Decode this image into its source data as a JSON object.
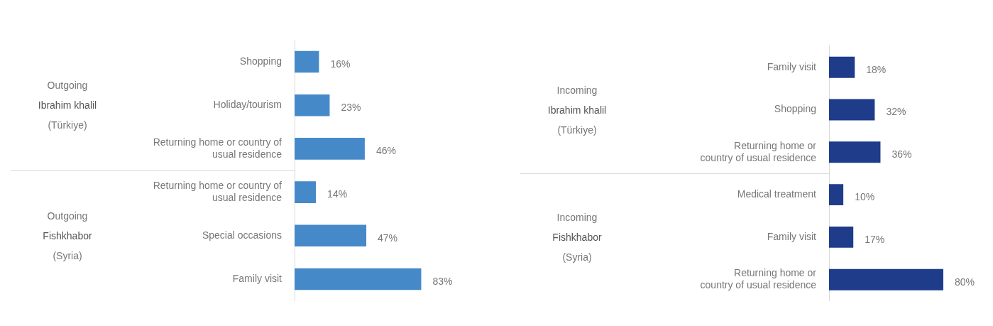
{
  "chart_data": [
    {
      "type": "bar",
      "orientation": "horizontal",
      "categories": [
        "Shopping",
        "Holiday/tourism",
        "Returning home or country of usual residence",
        "Returning home or country of usual residence",
        "Special occasions",
        "Family visit"
      ],
      "values": [
        16,
        23,
        46,
        14,
        47,
        83
      ],
      "value_labels": [
        "16%",
        "23%",
        "46%",
        "14%",
        "47%",
        "83%"
      ],
      "color": "#4589c9",
      "tick_labels": "y",
      "annotations": [
        "Outgoing\nIbrahim khalil\n(Türkiye)",
        "Outgoing\nFishkhabor\n(Syria)"
      ]
    },
    {
      "type": "bar",
      "orientation": "horizontal",
      "categories": [
        "Family visit",
        "Shopping",
        "Returning home or country of usual residence",
        "Medical treatment",
        "Family visit",
        "Returning home or country of usual residence"
      ],
      "values": [
        18,
        32,
        36,
        10,
        17,
        80
      ],
      "value_labels": [
        "18%",
        "32%",
        "36%",
        "10%",
        "17%",
        "80%"
      ],
      "color": "#1f3c8b",
      "tick_labels": "y",
      "annotations": [
        "Incoming\nIbrahim khalil\n(Türkiye)",
        "Incoming\nFishkhabor\n(Syria)"
      ]
    }
  ]
}
